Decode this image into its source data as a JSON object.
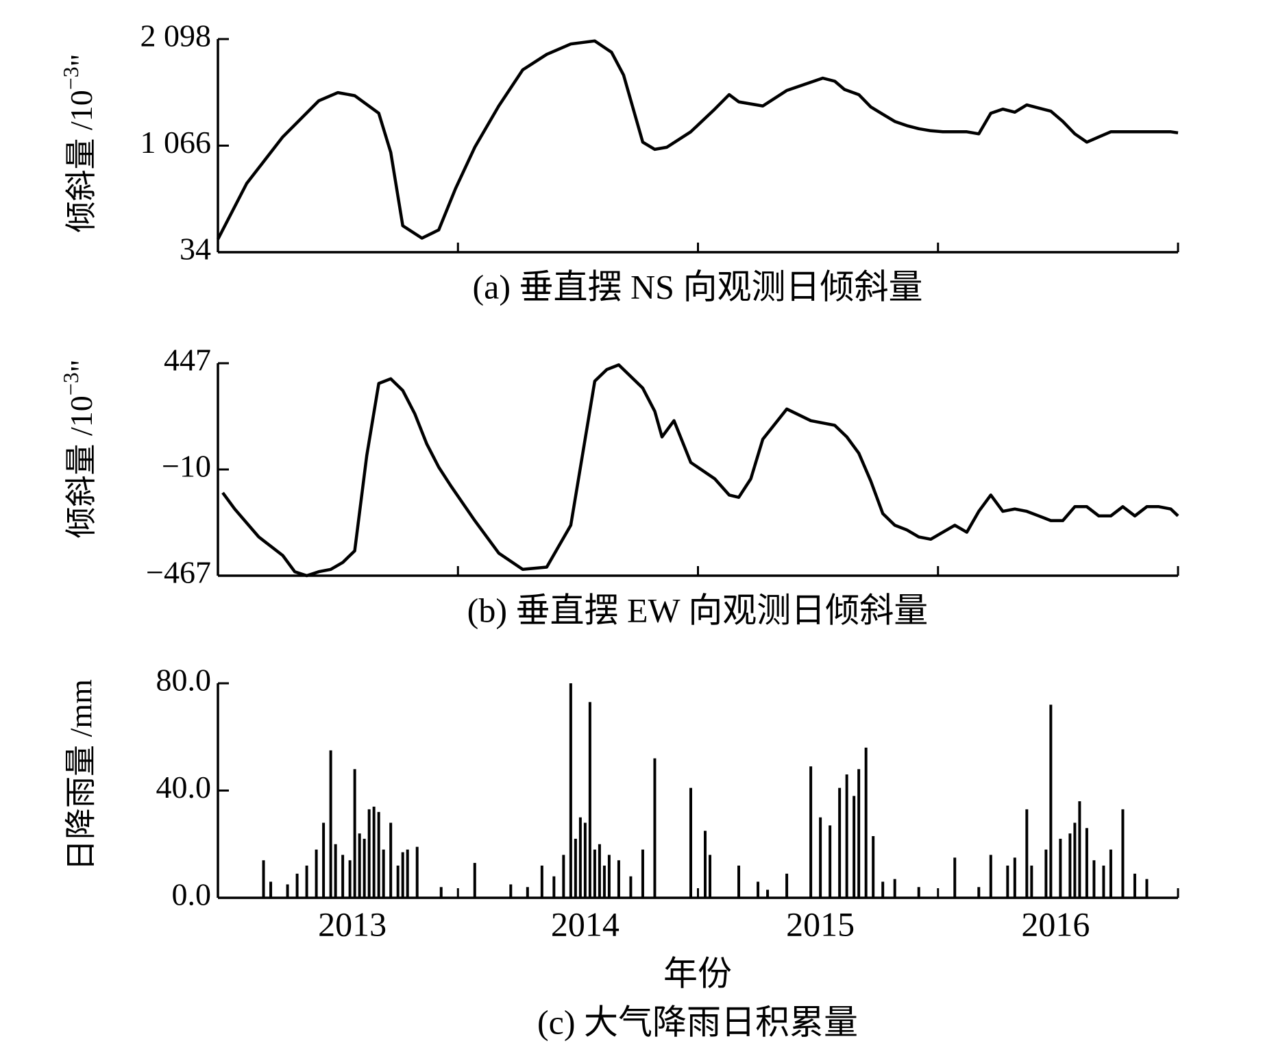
{
  "chart_data": [
    {
      "type": "line",
      "caption": "(a) 垂直摆 NS 向观测日倾斜量",
      "ylabel": "倾斜量 /10",
      "yunit_sup": "−3",
      "yunit_suffix": "\"",
      "ylim": [
        34,
        2098
      ],
      "yticks": [
        34,
        1066,
        2098
      ],
      "ytick_labels": [
        "34",
        "1 066",
        "2 098"
      ],
      "xlim": [
        2012.43,
        2016.43
      ],
      "grid": false,
      "series": [
        {
          "x": [
            2012.43,
            2012.55,
            2012.7,
            2012.85,
            2012.93,
            2013.0,
            2013.1,
            2013.15,
            2013.2,
            2013.28,
            2013.35,
            2013.42,
            2013.5,
            2013.6,
            2013.7,
            2013.8,
            2013.9,
            2014.0,
            2014.07,
            2014.12,
            2014.2,
            2014.25,
            2014.3,
            2014.4,
            2014.5,
            2014.56,
            2014.6,
            2014.7,
            2014.8,
            2014.9,
            2014.95,
            2015.0,
            2015.04,
            2015.1,
            2015.15,
            2015.2,
            2015.25,
            2015.3,
            2015.35,
            2015.4,
            2015.45,
            2015.5,
            2015.55,
            2015.6,
            2015.65,
            2015.7,
            2015.75,
            2015.8,
            2015.85,
            2015.9,
            2015.95,
            2016.0,
            2016.05,
            2016.1,
            2016.15,
            2016.2,
            2016.3,
            2016.4,
            2016.43
          ],
          "y": [
            160,
            700,
            1150,
            1500,
            1580,
            1550,
            1380,
            1000,
            290,
            170,
            250,
            650,
            1050,
            1450,
            1800,
            1950,
            2050,
            2080,
            1970,
            1750,
            1100,
            1030,
            1050,
            1200,
            1420,
            1560,
            1490,
            1450,
            1600,
            1680,
            1720,
            1690,
            1610,
            1560,
            1440,
            1370,
            1300,
            1260,
            1230,
            1210,
            1200,
            1200,
            1200,
            1180,
            1380,
            1420,
            1390,
            1460,
            1430,
            1400,
            1300,
            1180,
            1100,
            1150,
            1200,
            1200,
            1200,
            1200,
            1190
          ]
        }
      ]
    },
    {
      "type": "line",
      "caption": "(b) 垂直摆 EW 向观测日倾斜量",
      "ylabel": "倾斜量 /10",
      "yunit_sup": "−3",
      "yunit_suffix": "\"",
      "ylim": [
        -467,
        447
      ],
      "yticks": [
        -467,
        -10,
        447
      ],
      "ytick_labels": [
        "−467",
        "−10",
        "447"
      ],
      "xlim": [
        2012.43,
        2016.43
      ],
      "grid": false,
      "series": [
        {
          "x": [
            2012.45,
            2012.5,
            2012.6,
            2012.7,
            2012.75,
            2012.8,
            2012.85,
            2012.9,
            2012.95,
            2013.0,
            2013.05,
            2013.1,
            2013.15,
            2013.2,
            2013.25,
            2013.3,
            2013.35,
            2013.4,
            2013.5,
            2013.6,
            2013.7,
            2013.8,
            2013.9,
            2014.0,
            2014.05,
            2014.1,
            2014.2,
            2014.25,
            2014.28,
            2014.33,
            2014.4,
            2014.5,
            2014.56,
            2014.6,
            2014.65,
            2014.7,
            2014.8,
            2014.9,
            2015.0,
            2015.05,
            2015.1,
            2015.15,
            2015.2,
            2015.25,
            2015.3,
            2015.35,
            2015.4,
            2015.45,
            2015.5,
            2015.55,
            2015.6,
            2015.65,
            2015.7,
            2015.75,
            2015.8,
            2015.85,
            2015.9,
            2015.95,
            2016.0,
            2016.05,
            2016.1,
            2016.15,
            2016.2,
            2016.25,
            2016.3,
            2016.35,
            2016.4,
            2016.43
          ],
          "y": [
            -110,
            -180,
            -300,
            -380,
            -450,
            -467,
            -450,
            -440,
            -410,
            -360,
            50,
            360,
            380,
            330,
            230,
            100,
            0,
            -80,
            -230,
            -370,
            -440,
            -430,
            -250,
            370,
            420,
            440,
            340,
            240,
            130,
            200,
            20,
            -50,
            -120,
            -130,
            -50,
            120,
            250,
            200,
            180,
            130,
            60,
            -60,
            -200,
            -250,
            -270,
            -300,
            -310,
            -280,
            -250,
            -280,
            -190,
            -120,
            -190,
            -180,
            -190,
            -210,
            -230,
            -230,
            -170,
            -170,
            -210,
            -210,
            -170,
            -210,
            -170,
            -170,
            -180,
            -210
          ]
        }
      ]
    },
    {
      "type": "bar",
      "caption": "(c) 大气降雨日积累量",
      "ylabel": "日降雨量 /mm",
      "xlabel": "年份",
      "ylim": [
        0,
        80
      ],
      "yticks": [
        0,
        40,
        80
      ],
      "ytick_labels": [
        "0.0",
        "40.0",
        "80.0"
      ],
      "xlim": [
        2012.43,
        2016.43
      ],
      "xticks": [
        2013,
        2014,
        2015,
        2016
      ],
      "xticks_pos": [
        2012.43,
        2013.43,
        2014.43,
        2015.43,
        2016.43
      ],
      "xtick_labels": [
        "2013",
        "2014",
        "2015",
        "2016"
      ],
      "xtick_label_pos": [
        2012.99,
        2013.96,
        2014.94,
        2015.92
      ],
      "grid": false,
      "series": [
        {
          "x": [
            2012.62,
            2012.65,
            2012.72,
            2012.76,
            2012.8,
            2012.84,
            2012.87,
            2012.9,
            2012.92,
            2012.95,
            2012.98,
            2013.0,
            2013.02,
            2013.04,
            2013.06,
            2013.08,
            2013.1,
            2013.12,
            2013.15,
            2013.18,
            2013.2,
            2013.22,
            2013.26,
            2013.36,
            2013.5,
            2013.65,
            2013.72,
            2013.78,
            2013.83,
            2013.87,
            2013.9,
            2013.92,
            2013.94,
            2013.96,
            2013.98,
            2014.0,
            2014.02,
            2014.04,
            2014.06,
            2014.1,
            2014.15,
            2014.2,
            2014.25,
            2014.4,
            2014.46,
            2014.48,
            2014.6,
            2014.68,
            2014.72,
            2014.8,
            2014.9,
            2014.94,
            2014.98,
            2015.02,
            2015.05,
            2015.08,
            2015.1,
            2015.13,
            2015.16,
            2015.2,
            2015.25,
            2015.35,
            2015.5,
            2015.6,
            2015.65,
            2015.72,
            2015.75,
            2015.8,
            2015.82,
            2015.88,
            2015.9,
            2015.94,
            2015.98,
            2016.0,
            2016.02,
            2016.05,
            2016.08,
            2016.12,
            2016.15,
            2016.2,
            2016.25,
            2016.3
          ],
          "y": [
            14,
            6,
            5,
            9,
            12,
            18,
            28,
            55,
            20,
            16,
            14,
            48,
            24,
            22,
            33,
            34,
            32,
            18,
            28,
            12,
            17,
            18,
            19,
            4,
            13,
            5,
            4,
            12,
            8,
            16,
            80,
            22,
            30,
            28,
            73,
            18,
            20,
            12,
            16,
            14,
            8,
            18,
            52,
            41,
            25,
            16,
            12,
            6,
            3,
            9,
            49,
            30,
            27,
            41,
            46,
            38,
            48,
            56,
            23,
            6,
            7,
            4,
            15,
            4,
            16,
            12,
            15,
            33,
            12,
            18,
            72,
            22,
            24,
            28,
            36,
            26,
            14,
            12,
            18,
            33,
            9,
            7
          ]
        }
      ]
    }
  ]
}
